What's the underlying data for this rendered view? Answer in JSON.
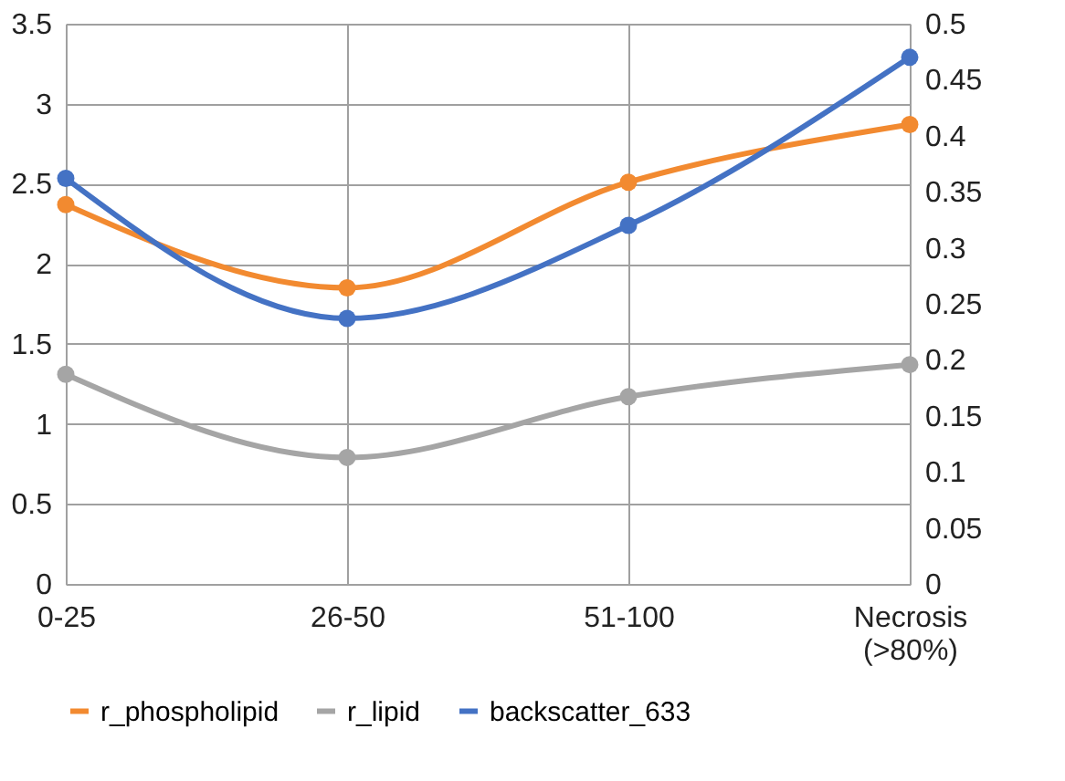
{
  "chart_data": {
    "type": "line",
    "categories": [
      "0-25",
      "26-50",
      "51-100",
      "Necrosis (>80%)"
    ],
    "series": [
      {
        "name": "r_phospholipid",
        "color": "#f28a30",
        "values": [
          2.37,
          1.85,
          2.51,
          2.87
        ]
      },
      {
        "name": "r_lipid",
        "color": "#a5a5a5",
        "values": [
          1.31,
          0.79,
          1.17,
          1.37
        ]
      },
      {
        "name": "backscatter_633",
        "color": "#4472c4",
        "values": [
          0.362,
          0.237,
          0.32,
          0.47
        ],
        "axis": "y2"
      }
    ],
    "ylim": [
      0,
      3.5
    ],
    "yticks": [
      0,
      0.5,
      1,
      1.5,
      2,
      2.5,
      3,
      3.5
    ],
    "y2lim": [
      0,
      0.5
    ],
    "y2ticks": [
      0,
      0.05,
      0.1,
      0.15,
      0.2,
      0.25,
      0.3,
      0.35,
      0.4,
      0.45,
      0.5
    ],
    "grid": true,
    "legend": "bottom",
    "marker": "circle",
    "line_style": "solid"
  }
}
